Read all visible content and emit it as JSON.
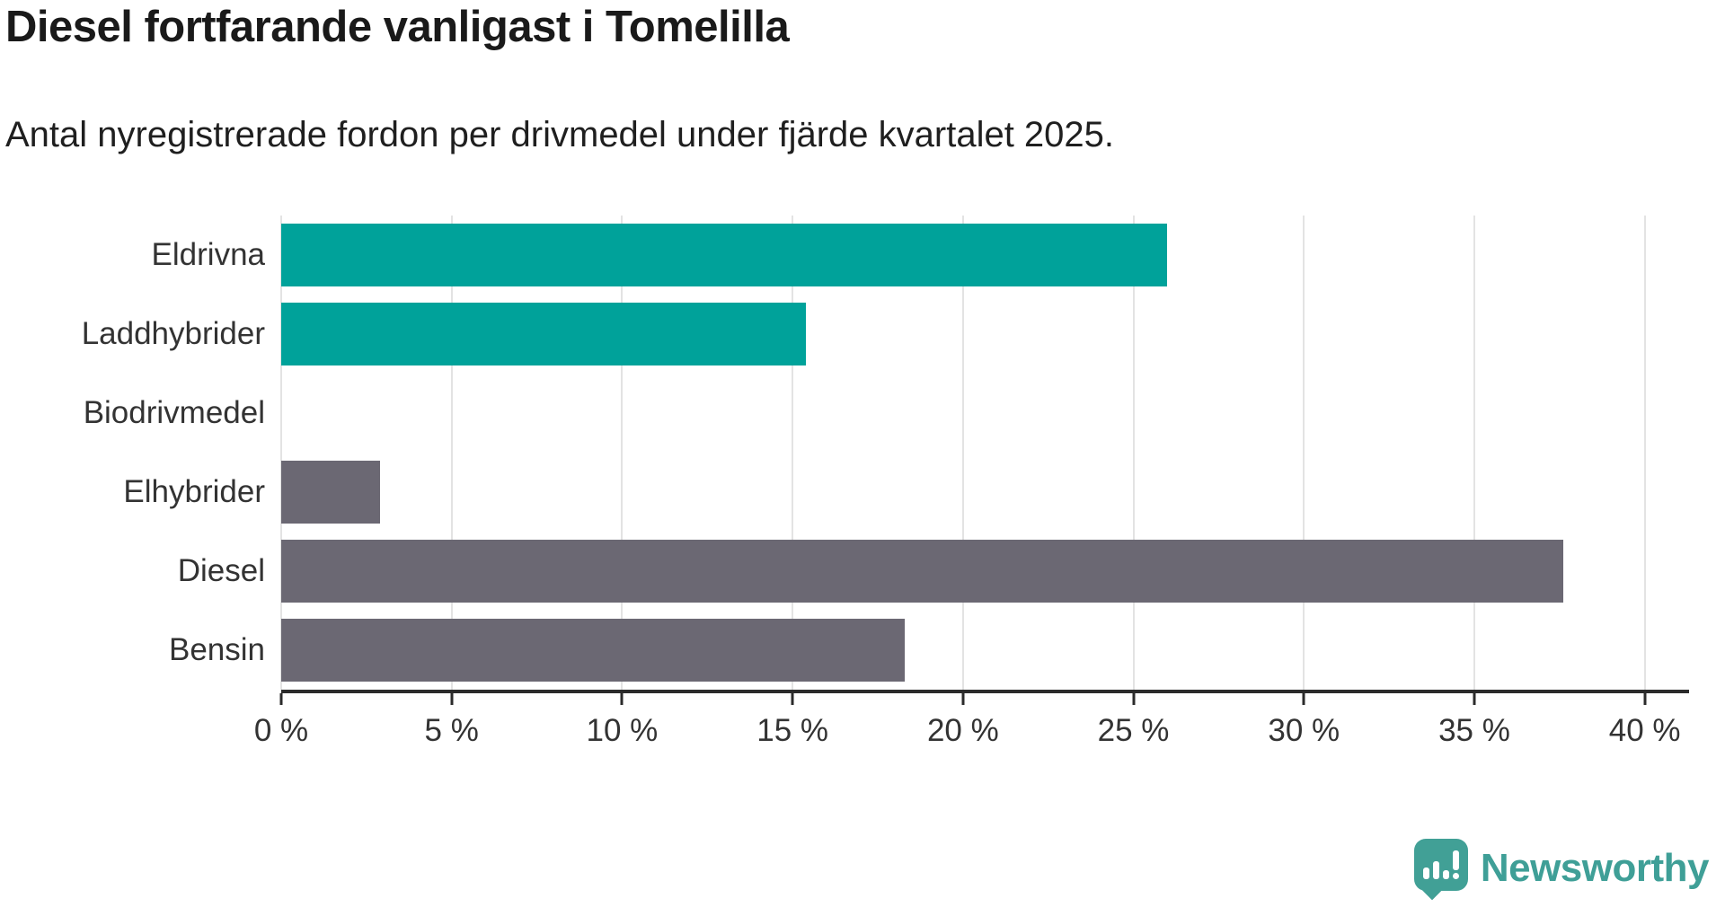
{
  "title": "Diesel fortfarande vanligast i Tomelilla",
  "subtitle": "Antal nyregistrerade fordon per drivmedel under fjärde kvartalet 2025.",
  "chart_data": {
    "type": "bar",
    "orientation": "horizontal",
    "categories": [
      "Eldrivna",
      "Laddhybrider",
      "Biodrivmedel",
      "Elhybrider",
      "Diesel",
      "Bensin"
    ],
    "values": [
      26,
      15.4,
      0,
      2.9,
      37.6,
      18.3
    ],
    "unit": "%",
    "bar_colors": [
      "#00a29a",
      "#00a29a",
      "#00a29a",
      "#6b6873",
      "#6b6873",
      "#6b6873"
    ],
    "xlim": [
      0,
      41.3
    ],
    "xticks": [
      0,
      5,
      10,
      15,
      20,
      25,
      30,
      35,
      40
    ],
    "xtick_suffix": " %",
    "grid": true,
    "legend": "none",
    "title": "Diesel fortfarande vanligast i Tomelilla",
    "xlabel": "",
    "ylabel": "",
    "colors": {
      "teal": "#00a29a",
      "gray": "#6b6873",
      "gridline": "#e3e3e3",
      "axis_line": "#2b2b2b",
      "label_text": "#333333",
      "title_text": "#1a1a1a"
    }
  },
  "branding": {
    "logo_text": "Newsworthy",
    "logo_color": "#3f9f97"
  }
}
